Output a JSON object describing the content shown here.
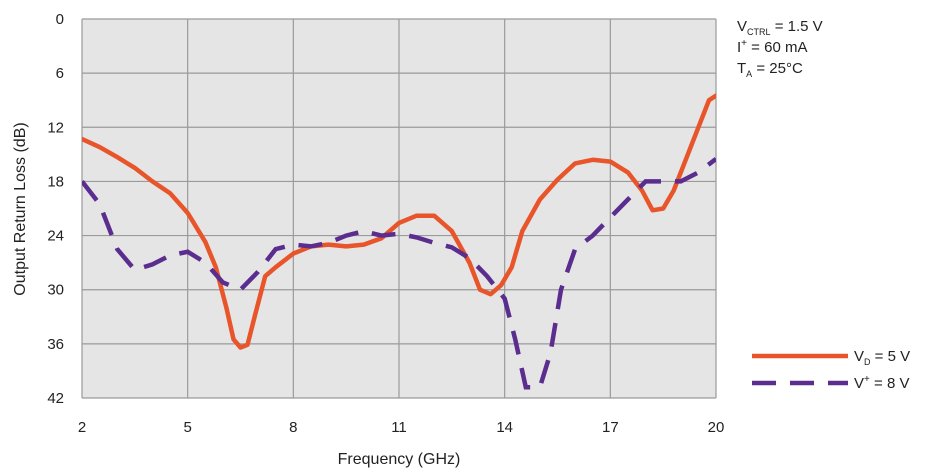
{
  "chart_data": {
    "type": "line",
    "xlabel": "Frequency (GHz)",
    "ylabel": "Output Return Loss (dB)",
    "xlim": [
      2,
      20
    ],
    "ylim": [
      0,
      42
    ],
    "y_inverted": true,
    "x_ticks": [
      "2",
      "5",
      "8",
      "11",
      "14",
      "17",
      "20"
    ],
    "y_ticks": [
      "0",
      "6",
      "12",
      "18",
      "24",
      "30",
      "36",
      "42"
    ],
    "grid": true,
    "legend_position": "bottom-right",
    "annotations": [
      {
        "main": "V",
        "sub": "CTRL",
        "sup": "",
        "rest": " = 1.5 V"
      },
      {
        "main": "I",
        "sub": "",
        "sup": "+",
        "rest": " = 60 mA"
      },
      {
        "main": "T",
        "sub": "A",
        "sup": "",
        "rest": " = 25°C"
      }
    ],
    "series": [
      {
        "legend_main": "V",
        "legend_sub": "D",
        "legend_sup": "",
        "legend_rest": " = 5 V",
        "color": "#e8552a",
        "dashed": false,
        "points": [
          [
            2.0,
            13.3
          ],
          [
            2.5,
            14.2
          ],
          [
            3.0,
            15.3
          ],
          [
            3.5,
            16.5
          ],
          [
            4.0,
            18.0
          ],
          [
            4.5,
            19.3
          ],
          [
            5.0,
            21.5
          ],
          [
            5.5,
            24.7
          ],
          [
            5.8,
            27.5
          ],
          [
            6.1,
            32.0
          ],
          [
            6.3,
            35.5
          ],
          [
            6.5,
            36.4
          ],
          [
            6.7,
            36.1
          ],
          [
            6.9,
            33.0
          ],
          [
            7.2,
            28.5
          ],
          [
            7.5,
            27.5
          ],
          [
            8.0,
            26.0
          ],
          [
            8.5,
            25.2
          ],
          [
            9.0,
            25.0
          ],
          [
            9.5,
            25.2
          ],
          [
            10.0,
            25.0
          ],
          [
            10.5,
            24.3
          ],
          [
            11.0,
            22.6
          ],
          [
            11.5,
            21.8
          ],
          [
            12.0,
            21.8
          ],
          [
            12.5,
            23.5
          ],
          [
            13.0,
            27.0
          ],
          [
            13.3,
            30.0
          ],
          [
            13.6,
            30.5
          ],
          [
            13.9,
            29.5
          ],
          [
            14.2,
            27.5
          ],
          [
            14.5,
            23.5
          ],
          [
            15.0,
            20.0
          ],
          [
            15.5,
            17.8
          ],
          [
            16.0,
            16.0
          ],
          [
            16.5,
            15.6
          ],
          [
            17.0,
            15.8
          ],
          [
            17.5,
            17.0
          ],
          [
            17.9,
            19.0
          ],
          [
            18.2,
            21.2
          ],
          [
            18.5,
            21.0
          ],
          [
            18.8,
            19.0
          ],
          [
            19.1,
            16.0
          ],
          [
            19.5,
            12.0
          ],
          [
            19.8,
            9.0
          ],
          [
            20.0,
            8.5
          ],
          [
            20.3,
            9.0
          ],
          [
            20.5,
            9.3
          ]
        ]
      },
      {
        "legend_main": "V",
        "legend_sub": "",
        "legend_sup": "+",
        "legend_rest": " = 8 V",
        "color": "#5b2d8e",
        "dashed": true,
        "points": [
          [
            2.0,
            18.0
          ],
          [
            2.5,
            20.5
          ],
          [
            3.0,
            25.5
          ],
          [
            3.5,
            27.8
          ],
          [
            4.0,
            27.2
          ],
          [
            4.5,
            26.2
          ],
          [
            5.0,
            25.8
          ],
          [
            5.5,
            27.0
          ],
          [
            6.0,
            29.2
          ],
          [
            6.5,
            30.0
          ],
          [
            7.0,
            28.0
          ],
          [
            7.5,
            25.5
          ],
          [
            8.0,
            25.0
          ],
          [
            8.5,
            25.2
          ],
          [
            9.0,
            24.8
          ],
          [
            9.5,
            24.0
          ],
          [
            10.0,
            23.5
          ],
          [
            10.5,
            24.0
          ],
          [
            11.0,
            23.8
          ],
          [
            11.5,
            24.2
          ],
          [
            12.0,
            24.8
          ],
          [
            12.5,
            25.3
          ],
          [
            13.0,
            26.5
          ],
          [
            13.5,
            28.5
          ],
          [
            14.0,
            31.0
          ],
          [
            14.3,
            35.5
          ],
          [
            14.6,
            40.8
          ],
          [
            15.0,
            40.8
          ],
          [
            15.3,
            37.0
          ],
          [
            15.6,
            30.0
          ],
          [
            16.0,
            25.5
          ],
          [
            16.5,
            24.0
          ],
          [
            17.0,
            22.0
          ],
          [
            17.5,
            20.0
          ],
          [
            18.0,
            18.0
          ],
          [
            18.5,
            18.0
          ],
          [
            19.0,
            18.0
          ],
          [
            19.5,
            17.0
          ],
          [
            20.0,
            15.5
          ]
        ]
      }
    ]
  }
}
